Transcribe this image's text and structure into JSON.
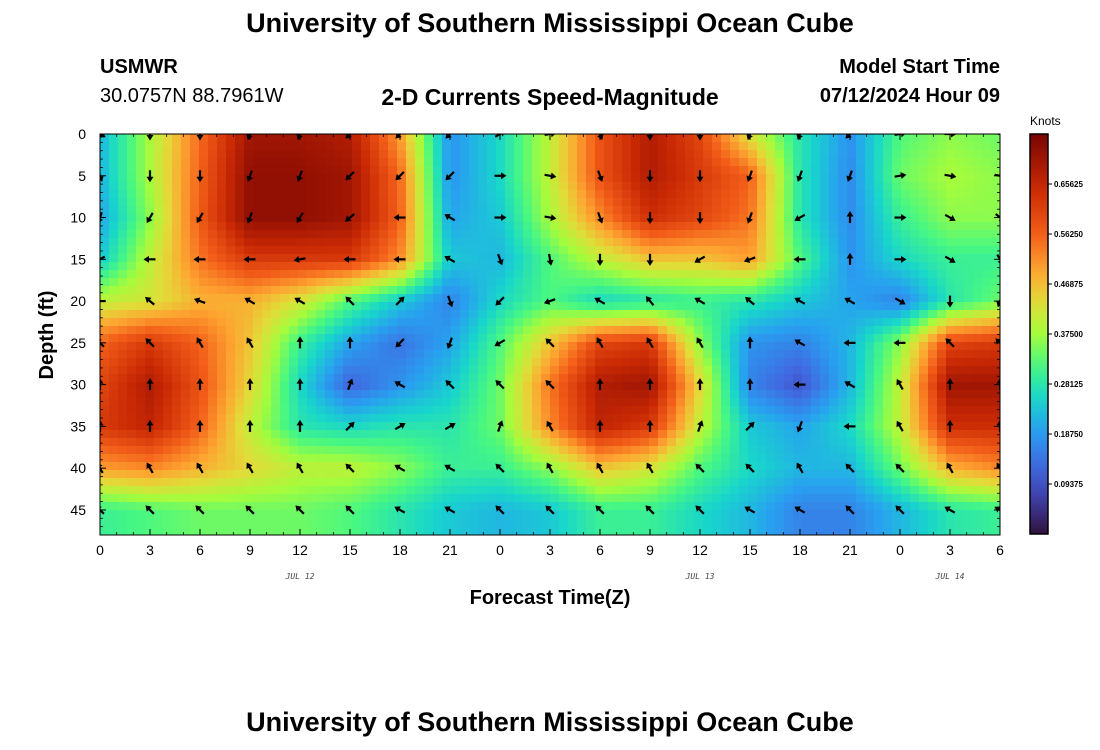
{
  "header": {
    "title": "University of Southern Mississippi Ocean Cube",
    "station_code": "USMWR",
    "station_coords": "30.0757N  88.7961W",
    "plot_subtitle": "2-D Currents Speed-Magnitude",
    "model_start_label": "Model Start Time",
    "model_start_value": "07/12/2024 Hour 09"
  },
  "footer": {
    "title": "University of Southern Mississippi Ocean Cube"
  },
  "colors": {
    "arrow": "#000000",
    "background": "#ffffff"
  },
  "chart_data": {
    "type": "heatmap",
    "title": "2-D Currents Speed-Magnitude",
    "xlabel": "Forecast Time(Z)",
    "ylabel": "Depth (ft)",
    "x_tick_labels": [
      "0",
      "3",
      "6",
      "9",
      "12",
      "15",
      "18",
      "21",
      "0",
      "3",
      "6",
      "9",
      "12",
      "15",
      "18",
      "21",
      "0",
      "3",
      "6"
    ],
    "x_hours": [
      0,
      3,
      6,
      9,
      12,
      15,
      18,
      21,
      24,
      27,
      30,
      33,
      36,
      39,
      42,
      45,
      48,
      51,
      54
    ],
    "xlim_hours": [
      0,
      54
    ],
    "day_labels": [
      {
        "label": "JUL 12",
        "hour": 12
      },
      {
        "label": "JUL 13",
        "hour": 36
      },
      {
        "label": "JUL 14",
        "hour": 51
      }
    ],
    "y_tick_labels": [
      "0",
      "5",
      "10",
      "15",
      "20",
      "25",
      "30",
      "35",
      "40",
      "45"
    ],
    "y_depths": [
      0,
      5,
      10,
      15,
      20,
      25,
      30,
      35,
      40,
      45
    ],
    "ylim_ft": [
      0,
      48
    ],
    "colorbar": {
      "units": "Knots",
      "range": [
        0,
        0.75
      ],
      "tick_values": [
        0.09375,
        0.1875,
        0.28125,
        0.375,
        0.46875,
        0.5625,
        0.65625
      ],
      "tick_labels": [
        "0.09375",
        "0.18750",
        "0.28125",
        "0.37500",
        "0.46875",
        "0.56250",
        "0.65625"
      ]
    },
    "grid_hours": [
      0,
      3,
      6,
      9,
      12,
      15,
      18,
      21,
      24,
      27,
      30,
      33,
      36,
      39,
      42,
      45,
      48,
      51,
      54
    ],
    "grid_depths": [
      0,
      5,
      10,
      15,
      20,
      25,
      30,
      35,
      40,
      45
    ],
    "speed_knots": [
      [
        0.22,
        0.38,
        0.55,
        0.7,
        0.7,
        0.68,
        0.5,
        0.18,
        0.26,
        0.4,
        0.58,
        0.68,
        0.6,
        0.42,
        0.28,
        0.18,
        0.32,
        0.36,
        0.34
      ],
      [
        0.22,
        0.38,
        0.56,
        0.72,
        0.72,
        0.7,
        0.55,
        0.18,
        0.26,
        0.4,
        0.58,
        0.68,
        0.62,
        0.56,
        0.28,
        0.17,
        0.34,
        0.38,
        0.36
      ],
      [
        0.2,
        0.36,
        0.57,
        0.72,
        0.72,
        0.7,
        0.56,
        0.2,
        0.24,
        0.38,
        0.52,
        0.64,
        0.6,
        0.54,
        0.28,
        0.17,
        0.3,
        0.36,
        0.36
      ],
      [
        0.24,
        0.4,
        0.54,
        0.62,
        0.62,
        0.62,
        0.52,
        0.24,
        0.22,
        0.32,
        0.4,
        0.46,
        0.46,
        0.5,
        0.32,
        0.18,
        0.26,
        0.3,
        0.3
      ],
      [
        0.4,
        0.42,
        0.48,
        0.48,
        0.42,
        0.32,
        0.24,
        0.16,
        0.26,
        0.32,
        0.26,
        0.28,
        0.3,
        0.28,
        0.24,
        0.2,
        0.16,
        0.28,
        0.34
      ],
      [
        0.56,
        0.62,
        0.56,
        0.46,
        0.3,
        0.2,
        0.14,
        0.2,
        0.32,
        0.46,
        0.6,
        0.62,
        0.36,
        0.18,
        0.16,
        0.22,
        0.36,
        0.6,
        0.62
      ],
      [
        0.6,
        0.68,
        0.58,
        0.44,
        0.26,
        0.12,
        0.18,
        0.24,
        0.34,
        0.54,
        0.68,
        0.7,
        0.44,
        0.16,
        0.1,
        0.22,
        0.4,
        0.7,
        0.7
      ],
      [
        0.62,
        0.66,
        0.56,
        0.4,
        0.28,
        0.26,
        0.28,
        0.28,
        0.34,
        0.52,
        0.66,
        0.62,
        0.4,
        0.24,
        0.2,
        0.26,
        0.4,
        0.64,
        0.64
      ],
      [
        0.5,
        0.52,
        0.48,
        0.44,
        0.4,
        0.4,
        0.36,
        0.3,
        0.3,
        0.36,
        0.46,
        0.42,
        0.32,
        0.26,
        0.22,
        0.22,
        0.34,
        0.48,
        0.52
      ],
      [
        0.3,
        0.32,
        0.34,
        0.34,
        0.34,
        0.32,
        0.28,
        0.24,
        0.22,
        0.24,
        0.3,
        0.3,
        0.26,
        0.22,
        0.16,
        0.16,
        0.22,
        0.28,
        0.3
      ]
    ],
    "direction_deg": [
      [
        120,
        180,
        180,
        200,
        200,
        225,
        225,
        225,
        60,
        80,
        160,
        180,
        180,
        200,
        200,
        225,
        80,
        90,
        100
      ],
      [
        160,
        180,
        180,
        200,
        200,
        225,
        225,
        225,
        90,
        100,
        160,
        180,
        180,
        200,
        200,
        200,
        80,
        100,
        100
      ],
      [
        200,
        210,
        210,
        200,
        210,
        230,
        270,
        300,
        90,
        100,
        160,
        180,
        180,
        200,
        240,
        0,
        90,
        120,
        130
      ],
      [
        240,
        270,
        270,
        270,
        260,
        270,
        270,
        300,
        160,
        170,
        180,
        180,
        240,
        250,
        270,
        0,
        90,
        120,
        150
      ],
      [
        270,
        310,
        290,
        300,
        300,
        315,
        45,
        160,
        225,
        250,
        300,
        320,
        300,
        310,
        300,
        300,
        120,
        180,
        200
      ],
      [
        315,
        315,
        330,
        330,
        0,
        0,
        225,
        200,
        240,
        315,
        330,
        330,
        330,
        0,
        300,
        270,
        270,
        315,
        315
      ],
      [
        0,
        0,
        0,
        0,
        0,
        20,
        300,
        315,
        315,
        315,
        0,
        0,
        0,
        0,
        270,
        300,
        330,
        0,
        0
      ],
      [
        0,
        0,
        0,
        0,
        0,
        45,
        60,
        60,
        20,
        330,
        0,
        0,
        20,
        45,
        200,
        270,
        330,
        0,
        0
      ],
      [
        330,
        330,
        330,
        330,
        330,
        315,
        300,
        300,
        315,
        330,
        330,
        330,
        315,
        315,
        330,
        315,
        315,
        330,
        330
      ],
      [
        315,
        315,
        315,
        315,
        315,
        315,
        300,
        300,
        315,
        315,
        315,
        315,
        315,
        300,
        300,
        315,
        315,
        300,
        300
      ]
    ]
  }
}
